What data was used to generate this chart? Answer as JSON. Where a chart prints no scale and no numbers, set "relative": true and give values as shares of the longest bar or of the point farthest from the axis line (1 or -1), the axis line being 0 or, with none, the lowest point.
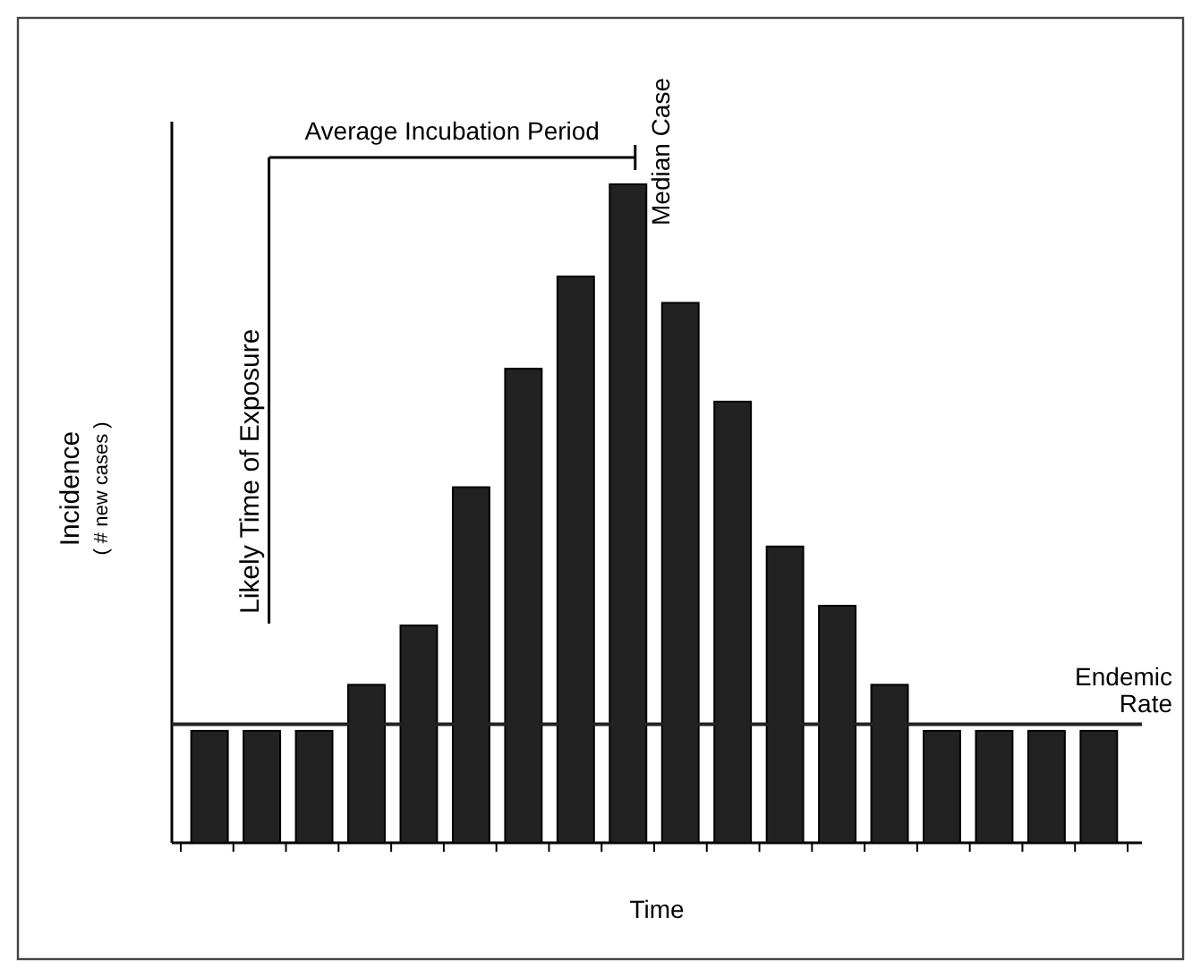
{
  "chart_data": {
    "type": "bar",
    "relative": true,
    "xlabel": "Time",
    "ylabel": "Incidence\n( # new cases )",
    "categories": [
      null,
      null,
      null,
      null,
      null,
      null,
      null,
      null,
      null,
      null,
      null,
      null,
      null,
      null,
      null,
      null,
      null,
      null
    ],
    "values": [
      0.17,
      0.17,
      0.17,
      0.24,
      0.33,
      0.54,
      0.72,
      0.86,
      1,
      0.82,
      0.67,
      0.45,
      0.36,
      0.24,
      0.17,
      0.17,
      0.17,
      0.17
    ],
    "color": "#222222",
    "ref_lines": [
      {
        "axis": "y",
        "value": 0.18,
        "label": "Endemic\nRate",
        "color": "#222222"
      }
    ],
    "annotations": [
      "Average Incubation Period",
      "Likely Time of Exposure",
      "Median Case"
    ]
  }
}
